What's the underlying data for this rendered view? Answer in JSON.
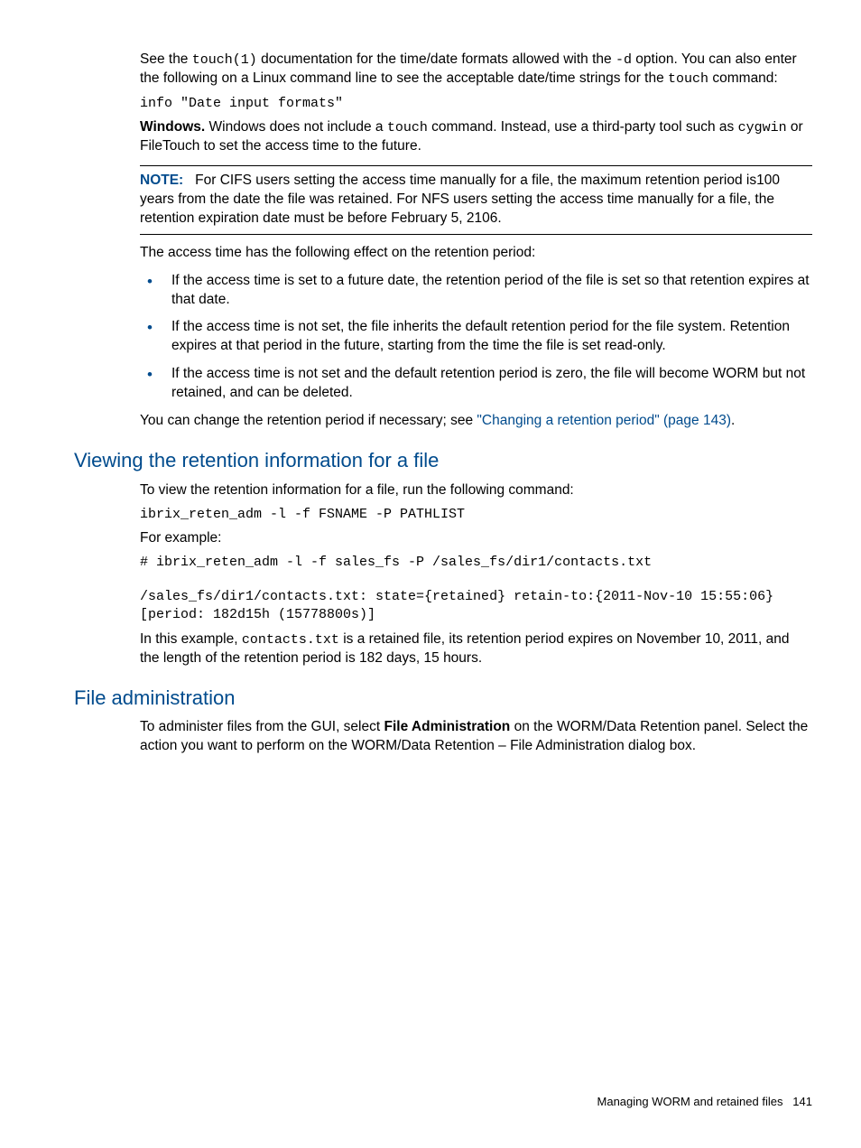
{
  "intro": {
    "p1_a": "See the ",
    "p1_code1": "touch(1)",
    "p1_b": " documentation for the time/date formats allowed with the ",
    "p1_code2": "-d",
    "p1_c": " option. You can also enter the following on a Linux command line to see the acceptable date/time strings for the ",
    "p1_code3": "touch",
    "p1_d": " command:"
  },
  "code1": "info \"Date input formats\"",
  "windows": {
    "label": "Windows.",
    "a": " Windows does not include a ",
    "code": "touch",
    "b": " command. Instead, use a third-party tool such as ",
    "code2": "cygwin",
    "c": " or FileTouch to set the access time to the future."
  },
  "note": {
    "label": "NOTE:",
    "text": "For CIFS users setting the access time manually for a file, the maximum retention period is100 years from the date the file was retained. For NFS users setting the access time manually for a file, the retention expiration date must be before February 5, 2106."
  },
  "effect_intro": "The access time has the following effect on the retention period:",
  "bullets": [
    "If the access time is set to a future date, the retention period of the file is set so that retention expires at that date.",
    "If the access time is not set, the file inherits the default retention period for the file system. Retention expires at that period in the future, starting from the time the file is set read-only.",
    "If the access time is not set and the default retention period is zero, the file will become WORM but not retained, and can be deleted."
  ],
  "change_a": "You can change the retention period if necessary; see ",
  "change_link": "\"Changing a retention period\" (page 143)",
  "change_b": ".",
  "viewing": {
    "heading": "Viewing the retention information for a file",
    "p1": "To view the retention information for a file, run the following command:",
    "cmd1": "ibrix_reten_adm -l -f FSNAME -P PATHLIST",
    "p2": "For example:",
    "cmd2": "# ibrix_reten_adm -l -f sales_fs -P /sales_fs/dir1/contacts.txt",
    "cmd3": "/sales_fs/dir1/contacts.txt: state={retained} retain-to:{2011-Nov-10 15:55:06} [period: 182d15h (15778800s)]",
    "p3_a": "In this example, ",
    "p3_code": "contacts.txt",
    "p3_b": " is a retained file, its retention period expires on November 10, 2011, and the length of the retention period is 182 days, 15 hours."
  },
  "fileadmin": {
    "heading": "File administration",
    "p_a": "To administer files from the GUI, select ",
    "p_bold": "File Administration",
    "p_b": " on the WORM/Data Retention panel. Select the action you want to perform on the WORM/Data Retention – File Administration dialog box."
  },
  "footer": {
    "text": "Managing WORM and retained files",
    "page": "141"
  }
}
